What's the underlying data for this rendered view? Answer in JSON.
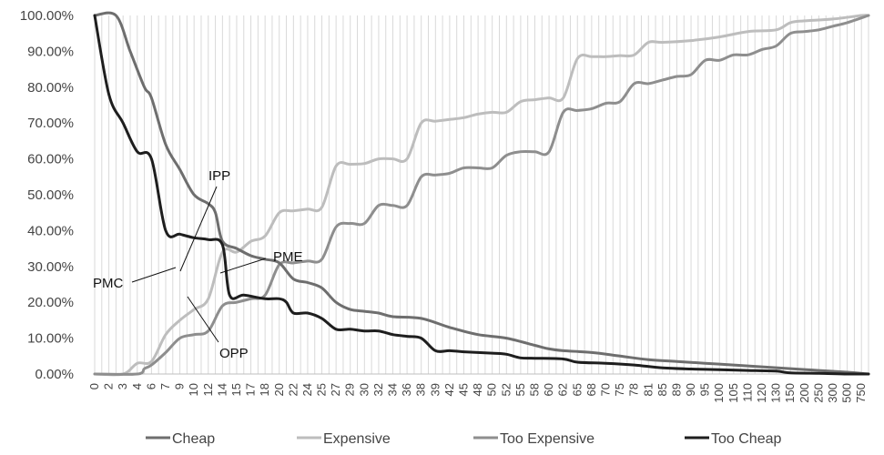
{
  "chart_data": {
    "type": "line",
    "title": "",
    "xlabel": "",
    "ylabel": "",
    "ylim": [
      0,
      1
    ],
    "y_ticks": [
      "0.00%",
      "10.00%",
      "20.00%",
      "30.00%",
      "40.00%",
      "50.00%",
      "60.00%",
      "70.00%",
      "80.00%",
      "90.00%",
      "100.00%"
    ],
    "x_tick_labels": [
      "0",
      "2",
      "3",
      "4",
      "6",
      "7",
      "9",
      "10",
      "12",
      "14",
      "15",
      "17",
      "18",
      "20",
      "22",
      "24",
      "25",
      "27",
      "29",
      "30",
      "32",
      "34",
      "36",
      "38",
      "39",
      "42",
      "45",
      "48",
      "50",
      "52",
      "55",
      "58",
      "60",
      "62",
      "65",
      "68",
      "70",
      "75",
      "78",
      "81",
      "85",
      "89",
      "90",
      "95",
      "100",
      "105",
      "110",
      "120",
      "130",
      "150",
      "200",
      "250",
      "300",
      "500",
      "750"
    ],
    "x_labels_shown_every": 2,
    "x_category_count": 110,
    "grid": "vertical",
    "legend_position": "bottom",
    "colors": {
      "cheap": "#6e6e6e",
      "expensive": "#bdbdbd",
      "too_expensive": "#8e8e8e",
      "too_cheap": "#1e1e1e"
    },
    "series": [
      {
        "name": "Cheap",
        "key": "cheap",
        "points": [
          [
            0,
            1.0
          ],
          [
            3,
            1.0
          ],
          [
            5,
            0.9
          ],
          [
            7,
            0.8
          ],
          [
            8,
            0.77
          ],
          [
            10,
            0.64
          ],
          [
            12,
            0.57
          ],
          [
            14,
            0.5
          ],
          [
            16,
            0.475
          ],
          [
            17,
            0.45
          ],
          [
            18,
            0.37
          ],
          [
            20,
            0.35
          ],
          [
            22,
            0.33
          ],
          [
            24,
            0.32
          ],
          [
            26,
            0.31
          ],
          [
            28,
            0.265
          ],
          [
            30,
            0.255
          ],
          [
            32,
            0.24
          ],
          [
            34,
            0.2
          ],
          [
            36,
            0.18
          ],
          [
            38,
            0.175
          ],
          [
            40,
            0.17
          ],
          [
            42,
            0.16
          ],
          [
            46,
            0.155
          ],
          [
            50,
            0.13
          ],
          [
            54,
            0.11
          ],
          [
            58,
            0.1
          ],
          [
            62,
            0.08
          ],
          [
            64,
            0.07
          ],
          [
            66,
            0.065
          ],
          [
            70,
            0.06
          ],
          [
            74,
            0.05
          ],
          [
            78,
            0.04
          ],
          [
            82,
            0.035
          ],
          [
            86,
            0.03
          ],
          [
            90,
            0.025
          ],
          [
            94,
            0.02
          ],
          [
            98,
            0.015
          ],
          [
            102,
            0.01
          ],
          [
            106,
            0.005
          ],
          [
            109,
            0.0
          ]
        ]
      },
      {
        "name": "Expensive",
        "key": "expensive",
        "points": [
          [
            0,
            0.0
          ],
          [
            4,
            0.0
          ],
          [
            6,
            0.03
          ],
          [
            8,
            0.035
          ],
          [
            10,
            0.11
          ],
          [
            12,
            0.15
          ],
          [
            14,
            0.18
          ],
          [
            16,
            0.21
          ],
          [
            18,
            0.34
          ],
          [
            20,
            0.34
          ],
          [
            22,
            0.37
          ],
          [
            24,
            0.385
          ],
          [
            26,
            0.45
          ],
          [
            28,
            0.455
          ],
          [
            30,
            0.46
          ],
          [
            32,
            0.465
          ],
          [
            34,
            0.58
          ],
          [
            36,
            0.585
          ],
          [
            38,
            0.587
          ],
          [
            40,
            0.6
          ],
          [
            42,
            0.6
          ],
          [
            44,
            0.6
          ],
          [
            46,
            0.7
          ],
          [
            48,
            0.705
          ],
          [
            50,
            0.71
          ],
          [
            52,
            0.715
          ],
          [
            54,
            0.725
          ],
          [
            56,
            0.73
          ],
          [
            58,
            0.73
          ],
          [
            60,
            0.76
          ],
          [
            62,
            0.765
          ],
          [
            64,
            0.77
          ],
          [
            66,
            0.77
          ],
          [
            68,
            0.88
          ],
          [
            70,
            0.885
          ],
          [
            72,
            0.885
          ],
          [
            74,
            0.888
          ],
          [
            76,
            0.89
          ],
          [
            78,
            0.925
          ],
          [
            80,
            0.925
          ],
          [
            84,
            0.93
          ],
          [
            88,
            0.94
          ],
          [
            92,
            0.955
          ],
          [
            96,
            0.96
          ],
          [
            98,
            0.98
          ],
          [
            100,
            0.985
          ],
          [
            104,
            0.99
          ],
          [
            108,
            1.0
          ],
          [
            109,
            1.0
          ]
        ]
      },
      {
        "name": "Too Expensive",
        "key": "too_expensive",
        "points": [
          [
            0,
            0.0
          ],
          [
            6,
            0.0
          ],
          [
            7,
            0.015
          ],
          [
            8,
            0.025
          ],
          [
            10,
            0.06
          ],
          [
            12,
            0.1
          ],
          [
            14,
            0.11
          ],
          [
            16,
            0.12
          ],
          [
            18,
            0.19
          ],
          [
            20,
            0.2
          ],
          [
            22,
            0.21
          ],
          [
            24,
            0.22
          ],
          [
            26,
            0.305
          ],
          [
            28,
            0.31
          ],
          [
            30,
            0.315
          ],
          [
            32,
            0.32
          ],
          [
            34,
            0.41
          ],
          [
            36,
            0.42
          ],
          [
            38,
            0.42
          ],
          [
            40,
            0.47
          ],
          [
            42,
            0.47
          ],
          [
            44,
            0.47
          ],
          [
            46,
            0.55
          ],
          [
            48,
            0.555
          ],
          [
            50,
            0.56
          ],
          [
            52,
            0.575
          ],
          [
            54,
            0.575
          ],
          [
            56,
            0.575
          ],
          [
            58,
            0.61
          ],
          [
            60,
            0.62
          ],
          [
            62,
            0.62
          ],
          [
            64,
            0.62
          ],
          [
            66,
            0.73
          ],
          [
            68,
            0.735
          ],
          [
            70,
            0.74
          ],
          [
            72,
            0.755
          ],
          [
            74,
            0.76
          ],
          [
            76,
            0.81
          ],
          [
            78,
            0.81
          ],
          [
            80,
            0.82
          ],
          [
            82,
            0.83
          ],
          [
            84,
            0.835
          ],
          [
            86,
            0.875
          ],
          [
            88,
            0.875
          ],
          [
            90,
            0.89
          ],
          [
            92,
            0.89
          ],
          [
            94,
            0.905
          ],
          [
            96,
            0.915
          ],
          [
            98,
            0.95
          ],
          [
            100,
            0.955
          ],
          [
            102,
            0.96
          ],
          [
            104,
            0.97
          ],
          [
            106,
            0.98
          ],
          [
            109,
            1.0
          ]
        ]
      },
      {
        "name": "Too Cheap",
        "key": "too_cheap",
        "points": [
          [
            0,
            1.0
          ],
          [
            2,
            0.78
          ],
          [
            4,
            0.7
          ],
          [
            6,
            0.62
          ],
          [
            8,
            0.6
          ],
          [
            10,
            0.4
          ],
          [
            12,
            0.39
          ],
          [
            14,
            0.38
          ],
          [
            16,
            0.375
          ],
          [
            18,
            0.36
          ],
          [
            19,
            0.22
          ],
          [
            21,
            0.22
          ],
          [
            24,
            0.21
          ],
          [
            26,
            0.21
          ],
          [
            27,
            0.2
          ],
          [
            28,
            0.17
          ],
          [
            30,
            0.17
          ],
          [
            32,
            0.155
          ],
          [
            34,
            0.125
          ],
          [
            36,
            0.125
          ],
          [
            38,
            0.12
          ],
          [
            40,
            0.12
          ],
          [
            42,
            0.11
          ],
          [
            44,
            0.105
          ],
          [
            46,
            0.1
          ],
          [
            48,
            0.065
          ],
          [
            50,
            0.065
          ],
          [
            52,
            0.062
          ],
          [
            56,
            0.058
          ],
          [
            58,
            0.055
          ],
          [
            60,
            0.045
          ],
          [
            62,
            0.044
          ],
          [
            66,
            0.042
          ],
          [
            68,
            0.033
          ],
          [
            72,
            0.03
          ],
          [
            76,
            0.025
          ],
          [
            80,
            0.017
          ],
          [
            84,
            0.014
          ],
          [
            88,
            0.012
          ],
          [
            92,
            0.01
          ],
          [
            96,
            0.008
          ],
          [
            98,
            0.003
          ],
          [
            102,
            0.002
          ],
          [
            106,
            0.0
          ],
          [
            109,
            0.0
          ]
        ]
      }
    ],
    "annotations": [
      {
        "label": "IPP",
        "key": "ipp",
        "x": 19,
        "y": 0.33
      },
      {
        "label": "PME",
        "key": "pme",
        "x": 24.5,
        "y": 0.28
      },
      {
        "label": "PMC",
        "key": "pmc",
        "x": 18.5,
        "y": 0.29
      },
      {
        "label": "OPP",
        "key": "opp",
        "x": 20.5,
        "y": 0.21
      }
    ]
  }
}
